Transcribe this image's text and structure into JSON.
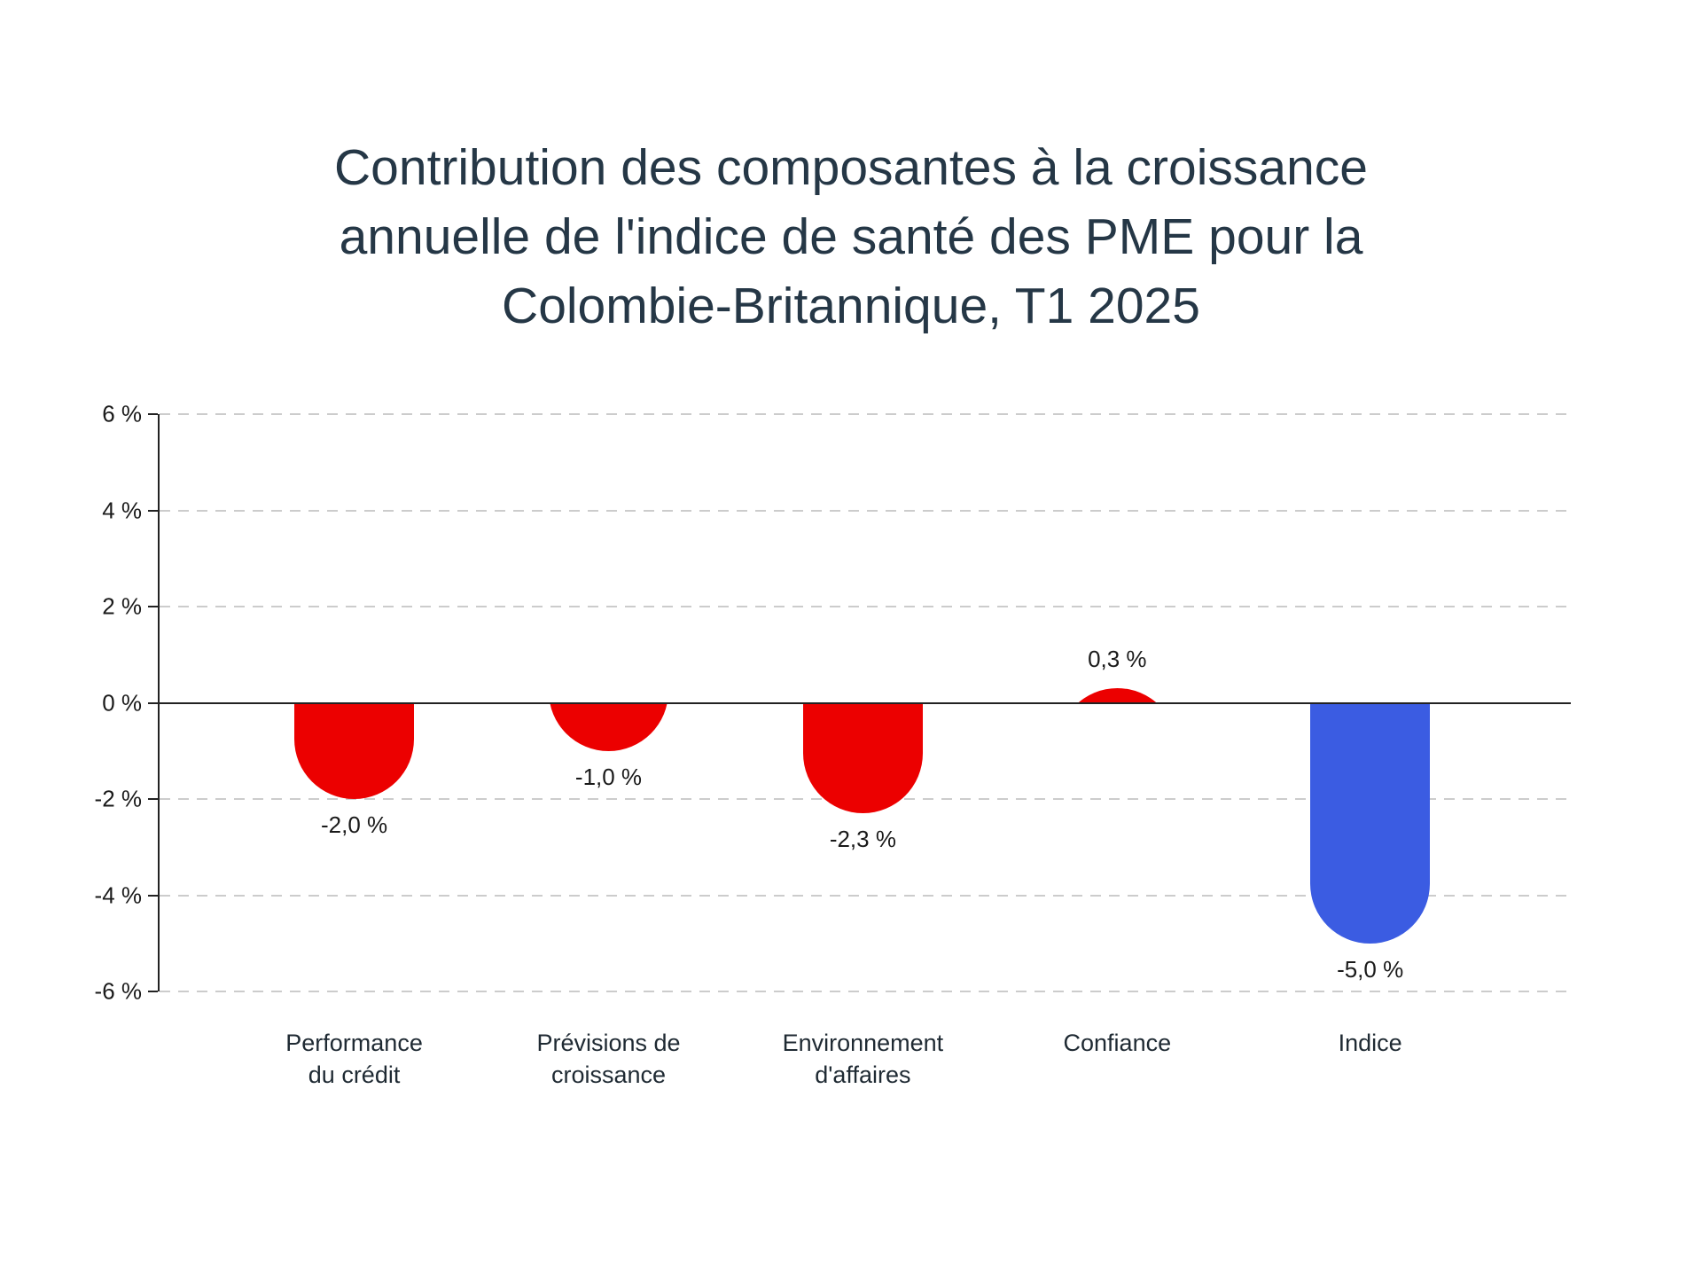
{
  "title": {
    "lines": [
      "Contribution des composantes à la croissance",
      "annuelle de l'indice de santé des PME pour la",
      "Colombie-Britannique, T1 2025"
    ]
  },
  "chart_data": {
    "type": "bar",
    "categories": [
      [
        "Performance",
        "du crédit"
      ],
      [
        "Prévisions de",
        "croissance"
      ],
      [
        "Environnement",
        "d'affaires"
      ],
      [
        "Confiance"
      ],
      [
        "Indice"
      ]
    ],
    "category_slugs": [
      "performance-du-credit",
      "previsions-de-croissance",
      "environnement-d-affaires",
      "confiance",
      "indice"
    ],
    "values": [
      -2.0,
      -1.0,
      -2.3,
      0.3,
      -5.0
    ],
    "value_labels": [
      "-2,0 %",
      "-1,0 %",
      "-2,3 %",
      "0,3 %",
      "-5,0 %"
    ],
    "bar_colors": [
      "#ec0000",
      "#ec0000",
      "#ec0000",
      "#ec0000",
      "#3b5ce2"
    ],
    "ylim": [
      -6,
      6
    ],
    "yticks": [
      {
        "value": 6,
        "label": "6 %"
      },
      {
        "value": 4,
        "label": "4 %"
      },
      {
        "value": 2,
        "label": "2 %"
      },
      {
        "value": 0,
        "label": "0 %"
      },
      {
        "value": -2,
        "label": "-2 %"
      },
      {
        "value": -4,
        "label": "-4 %"
      },
      {
        "value": -6,
        "label": "-6 %"
      }
    ],
    "grid": true,
    "legend": false,
    "colors": {
      "negative_component": "#ec0000",
      "index_total": "#3b5ce2",
      "axis": "#222222",
      "gridline": "#cccccc",
      "title_text": "#253746"
    }
  }
}
